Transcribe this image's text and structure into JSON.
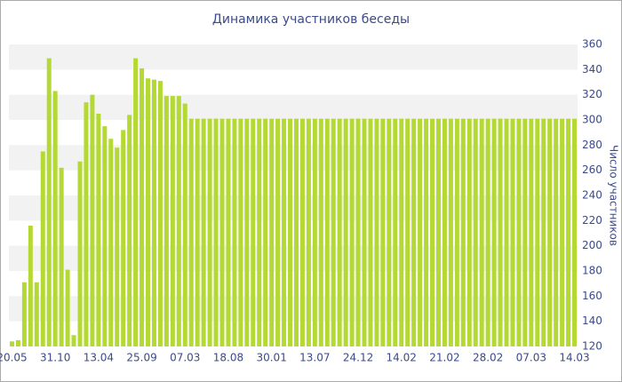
{
  "chart_data": {
    "type": "bar",
    "title": "Динамика участников беседы",
    "y_label": "Число участников",
    "categories": [
      "20.05",
      null,
      null,
      null,
      null,
      null,
      null,
      "31.10",
      null,
      null,
      null,
      null,
      null,
      null,
      "13.04",
      null,
      null,
      null,
      null,
      null,
      null,
      "25.09",
      null,
      null,
      null,
      null,
      null,
      null,
      "07.03",
      null,
      null,
      null,
      null,
      null,
      null,
      "18.08",
      null,
      null,
      null,
      null,
      null,
      null,
      "30.01",
      null,
      null,
      null,
      null,
      null,
      null,
      "13.07",
      null,
      null,
      null,
      null,
      null,
      null,
      "24.12",
      null,
      null,
      null,
      null,
      null,
      null,
      "14.02",
      null,
      null,
      null,
      null,
      null,
      null,
      "21.02",
      null,
      null,
      null,
      null,
      null,
      null,
      "28.02",
      null,
      null,
      null,
      null,
      null,
      null,
      "07.03",
      null,
      null,
      null,
      null,
      null,
      null,
      "14.03"
    ],
    "values": [
      124,
      125,
      171,
      216,
      171,
      275,
      349,
      323,
      262,
      181,
      129,
      267,
      314,
      320,
      305,
      295,
      285,
      278,
      292,
      304,
      349,
      341,
      333,
      332,
      331,
      319,
      319,
      319,
      313,
      301,
      301,
      301,
      301,
      301,
      301,
      301,
      301,
      301,
      301,
      301,
      301,
      301,
      301,
      301,
      301,
      301,
      301,
      301,
      301,
      301,
      301,
      301,
      301,
      301,
      301,
      301,
      301,
      301,
      301,
      301,
      301,
      301,
      301,
      301,
      301,
      301,
      301,
      301,
      301,
      301,
      301,
      301,
      301,
      301,
      301,
      301,
      301,
      301,
      301,
      301,
      301,
      301,
      301,
      301,
      301,
      301,
      301,
      301,
      301,
      301,
      301,
      301
    ],
    "color": "#b5d934",
    "ylim": [
      120,
      360
    ],
    "yticks": [
      120,
      140,
      160,
      180,
      200,
      220,
      240,
      260,
      280,
      300,
      320,
      340,
      360
    ],
    "grid": true,
    "y_axis_side": "right"
  }
}
